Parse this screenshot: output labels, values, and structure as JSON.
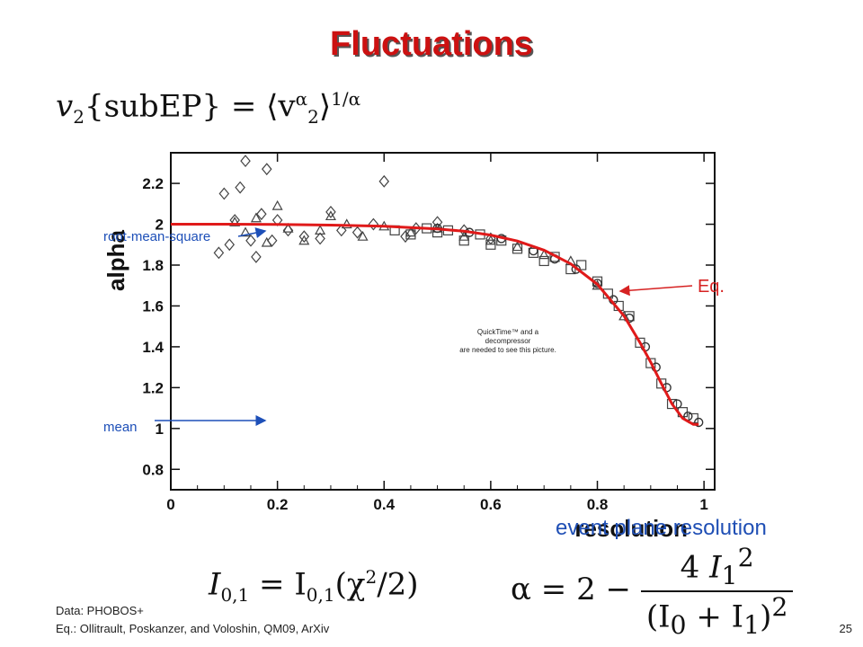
{
  "slide": {
    "title": "Fluctuations",
    "page_number": "25",
    "formula_top": {
      "lhs": "v",
      "sub1": "2",
      "brace": "{subEP}",
      "rhs": "= ⟨v",
      "sup": "α",
      "sub2": "2",
      "close": "⟩",
      "exp": "1/α"
    },
    "subtitle_overlay": "event plane resolution",
    "formula_left": {
      "text": "I",
      "sub": "0,1",
      "mid": " = I",
      "sub2": "0,1",
      "arg": "(χ",
      "sup": "2",
      "tail": "/2)"
    },
    "formula_right": {
      "lhs": "α = 2 −",
      "num_coef": "4",
      "num_var": "I",
      "num_sub": "1",
      "num_sup": "2",
      "den": "(I",
      "den_sub0": "0",
      "den_plus": " + I",
      "den_sub1": "1",
      "den_close": ")",
      "den_sup": "2"
    },
    "footer_data": "Data: PHOBOS+",
    "footer_eq": "Eq.: Ollitrault, Poskanzer, and Voloshin, QM09, ArXiv"
  },
  "annotations": {
    "rms": "root-mean-square",
    "mean": "mean",
    "eq": "Eq.",
    "placeholder_line1": "QuickTime™ and a",
    "placeholder_line2": "decompressor",
    "placeholder_line3": "are needed to see this picture."
  },
  "colors": {
    "title": "#cc1111",
    "curve": "#e01a1a",
    "blue_arrow": "#1d4fb8",
    "red_arrow": "#d62222",
    "subtitle": "#1f4fb5"
  },
  "chart_data": {
    "type": "scatter",
    "xlabel": "resolution",
    "ylabel": "alpha",
    "xlim": [
      0,
      1.02
    ],
    "ylim": [
      0.7,
      2.35
    ],
    "x_ticks": [
      "0",
      "0.2",
      "0.4",
      "0.6",
      "0.8",
      "1"
    ],
    "y_ticks": [
      "0.8",
      "1",
      "1.2",
      "1.4",
      "1.6",
      "1.8",
      "2",
      "2.2"
    ],
    "x_tick_values": [
      0,
      0.2,
      0.4,
      0.6,
      0.8,
      1.0
    ],
    "y_tick_values": [
      0.8,
      1.0,
      1.2,
      1.4,
      1.6,
      1.8,
      2.0,
      2.2
    ],
    "curve": {
      "x": [
        0.0,
        0.1,
        0.2,
        0.3,
        0.4,
        0.5,
        0.55,
        0.6,
        0.65,
        0.7,
        0.75,
        0.8,
        0.85,
        0.88,
        0.9,
        0.92,
        0.94,
        0.96,
        0.98,
        0.99
      ],
      "y": [
        2.0,
        2.0,
        1.999,
        1.996,
        1.99,
        1.977,
        1.966,
        1.947,
        1.918,
        1.873,
        1.806,
        1.706,
        1.551,
        1.42,
        1.325,
        1.22,
        1.12,
        1.05,
        1.02,
        1.02
      ]
    },
    "series": [
      {
        "marker": "diamond",
        "x": [
          0.09,
          0.1,
          0.11,
          0.12,
          0.13,
          0.14,
          0.15,
          0.16,
          0.17,
          0.18,
          0.19,
          0.2,
          0.22,
          0.25,
          0.28,
          0.3,
          0.32,
          0.35,
          0.38,
          0.4,
          0.44,
          0.46,
          0.5,
          0.55,
          0.6
        ],
        "y": [
          1.86,
          2.15,
          1.9,
          2.02,
          2.18,
          2.31,
          1.92,
          1.84,
          2.05,
          2.27,
          1.92,
          2.02,
          1.97,
          1.94,
          1.93,
          2.06,
          1.97,
          1.96,
          2.0,
          2.21,
          1.94,
          1.98,
          2.01,
          1.97,
          1.93
        ]
      },
      {
        "marker": "triangle",
        "x": [
          0.12,
          0.14,
          0.16,
          0.18,
          0.2,
          0.22,
          0.25,
          0.28,
          0.3,
          0.33,
          0.36,
          0.4,
          0.45,
          0.5,
          0.55,
          0.6,
          0.65,
          0.7,
          0.75,
          0.8,
          0.85
        ],
        "y": [
          2.01,
          1.96,
          2.03,
          1.91,
          2.09,
          1.98,
          1.92,
          1.97,
          2.04,
          2.0,
          1.94,
          1.99,
          1.96,
          1.98,
          1.94,
          1.92,
          1.89,
          1.85,
          1.82,
          1.7,
          1.55
        ]
      },
      {
        "marker": "square",
        "x": [
          0.42,
          0.45,
          0.48,
          0.5,
          0.52,
          0.55,
          0.58,
          0.6,
          0.62,
          0.65,
          0.68,
          0.7,
          0.72,
          0.75,
          0.77,
          0.8,
          0.82,
          0.84,
          0.86,
          0.88,
          0.9,
          0.92,
          0.94,
          0.96,
          0.98
        ],
        "y": [
          1.97,
          1.95,
          1.98,
          1.96,
          1.97,
          1.92,
          1.95,
          1.9,
          1.92,
          1.88,
          1.86,
          1.82,
          1.84,
          1.78,
          1.8,
          1.72,
          1.66,
          1.6,
          1.55,
          1.42,
          1.32,
          1.22,
          1.12,
          1.08,
          1.05
        ]
      },
      {
        "marker": "circle",
        "x": [
          0.5,
          0.56,
          0.62,
          0.68,
          0.72,
          0.76,
          0.8,
          0.83,
          0.86,
          0.89,
          0.91,
          0.93,
          0.95,
          0.97,
          0.99
        ],
        "y": [
          1.98,
          1.96,
          1.93,
          1.87,
          1.83,
          1.78,
          1.71,
          1.63,
          1.54,
          1.4,
          1.3,
          1.2,
          1.12,
          1.06,
          1.03
        ]
      }
    ]
  }
}
